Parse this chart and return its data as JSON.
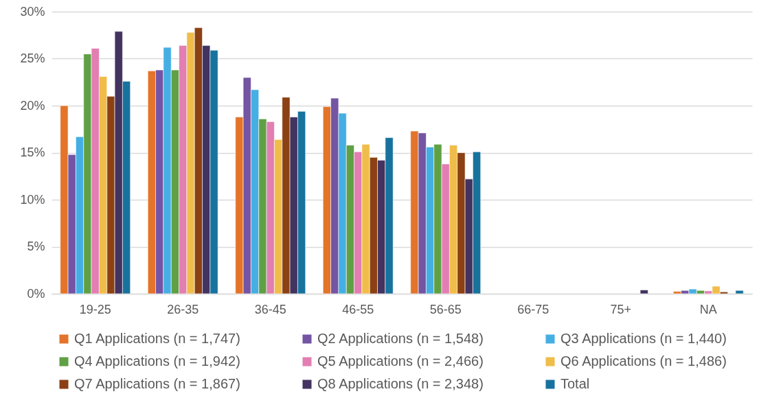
{
  "chart_data": {
    "type": "bar",
    "categories": [
      "19-25",
      "26-35",
      "36-45",
      "46-55",
      "56-65",
      "66-75",
      "75+",
      "NA"
    ],
    "series": [
      {
        "name": "Q1 Applications (n = 1,747)",
        "color": "#e3742a",
        "values": [
          20.0,
          23.7,
          18.8,
          19.9,
          17.3,
          null,
          null,
          0.25
        ]
      },
      {
        "name": "Q2 Applications (n = 1,548)",
        "color": "#7355a3",
        "values": [
          14.8,
          23.8,
          23.0,
          20.8,
          17.1,
          null,
          null,
          0.35
        ]
      },
      {
        "name": "Q3 Applications (n = 1,440)",
        "color": "#45afe3",
        "values": [
          16.7,
          26.2,
          21.7,
          19.2,
          15.6,
          null,
          null,
          0.5
        ]
      },
      {
        "name": "Q4 Applications (n = 1,942)",
        "color": "#5fa045",
        "values": [
          25.5,
          23.8,
          18.6,
          15.8,
          15.9,
          null,
          null,
          0.35
        ]
      },
      {
        "name": "Q5 Applications (n = 2,466)",
        "color": "#e27eb2",
        "values": [
          26.1,
          26.4,
          18.3,
          15.1,
          13.8,
          null,
          null,
          0.3
        ]
      },
      {
        "name": "Q6 Applications (n = 1,486)",
        "color": "#f0bd4a",
        "values": [
          23.1,
          27.8,
          16.4,
          15.9,
          15.8,
          null,
          null,
          0.8
        ]
      },
      {
        "name": "Q7 Applications (n = 1,867)",
        "color": "#8b4113",
        "values": [
          21.0,
          28.3,
          20.9,
          14.5,
          15.0,
          null,
          null,
          0.2
        ]
      },
      {
        "name": "Q8 Applications (n = 2,348)",
        "color": "#433360",
        "values": [
          27.9,
          26.4,
          18.8,
          14.2,
          12.2,
          null,
          0.4,
          null
        ]
      },
      {
        "name": "Total",
        "color": "#18729e",
        "values": [
          22.6,
          25.9,
          19.4,
          16.6,
          15.1,
          null,
          null,
          0.35
        ]
      }
    ],
    "ylim": [
      0,
      30
    ],
    "yticks": [
      {
        "value": 0,
        "label": "0%"
      },
      {
        "value": 5,
        "label": "5%"
      },
      {
        "value": 10,
        "label": "10%"
      },
      {
        "value": 15,
        "label": "15%"
      },
      {
        "value": 20,
        "label": "20%"
      },
      {
        "value": 25,
        "label": "25%"
      },
      {
        "value": 30,
        "label": "30%"
      }
    ],
    "grid": "y",
    "legend": "bottom"
  }
}
